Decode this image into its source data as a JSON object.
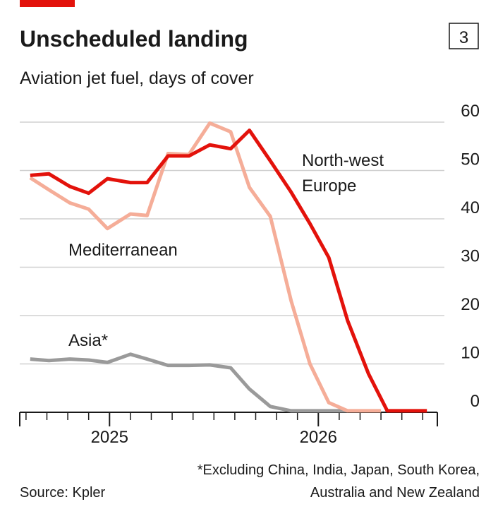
{
  "chart_data": {
    "type": "line",
    "title": "Unscheduled landing",
    "chart_number": "3",
    "subtitle": "Aviation jet fuel, days of cover",
    "annotations": {
      "nw_europe": [
        "North-west",
        "Europe"
      ],
      "mediterranean": "Mediterranean",
      "asia": "Asia*"
    },
    "footnote": [
      "*Excluding China, India, Japan, South Korea,",
      "Australia and New Zealand"
    ],
    "source": "Source: Kpler",
    "xlim": [
      2024.57,
      2026.57
    ],
    "xticks": [
      {
        "value": 2025,
        "label": "2025"
      },
      {
        "value": 2026,
        "label": "2026"
      }
    ],
    "xminorticks": [
      2024.6,
      2024.7,
      2024.8,
      2024.9,
      2025.1,
      2025.2,
      2025.3,
      2025.4,
      2025.5,
      2025.6,
      2025.7,
      2025.8,
      2025.9,
      2026.1,
      2026.2,
      2026.3,
      2026.4,
      2026.5
    ],
    "ylim": [
      0,
      60
    ],
    "yticks": [
      0,
      10,
      20,
      30,
      40,
      50,
      60
    ],
    "grid": true,
    "series": [
      {
        "name": "Asia*",
        "color": "#9a9a9a",
        "x": [
          2024.62,
          2024.71,
          2024.81,
          2024.9,
          2024.99,
          2025.1,
          2025.18,
          2025.28,
          2025.38,
          2025.48,
          2025.58,
          2025.67,
          2025.77,
          2025.87,
          2025.96,
          2026.05,
          2026.14
        ],
        "values": [
          11,
          10.7,
          11,
          10.8,
          10.3,
          12,
          11,
          9.7,
          9.7,
          9.8,
          9.2,
          4.8,
          1.2,
          0.3,
          0.3,
          0.3,
          0.3
        ]
      },
      {
        "name": "Mediterranean",
        "color": "#f5ad98",
        "x": [
          2024.62,
          2024.71,
          2024.81,
          2024.9,
          2024.99,
          2025.1,
          2025.18,
          2025.28,
          2025.38,
          2025.48,
          2025.58,
          2025.67,
          2025.77,
          2025.87,
          2025.96,
          2026.05,
          2026.14,
          2026.3
        ],
        "values": [
          48.5,
          46,
          43.3,
          42,
          38,
          41,
          40.7,
          53.5,
          53.3,
          59.8,
          58,
          46.5,
          40.5,
          23,
          10,
          2,
          0.3,
          0.3
        ]
      },
      {
        "name": "North-west Europe",
        "color": "#e3120b",
        "x": [
          2024.62,
          2024.71,
          2024.81,
          2024.9,
          2024.99,
          2025.1,
          2025.18,
          2025.28,
          2025.38,
          2025.48,
          2025.58,
          2025.67,
          2025.77,
          2025.87,
          2025.96,
          2026.05,
          2026.14,
          2026.24,
          2026.33,
          2026.52
        ],
        "values": [
          49,
          49.3,
          46.7,
          45.3,
          48.3,
          47.5,
          47.5,
          53,
          53,
          55.3,
          54.5,
          58.3,
          52,
          45.5,
          39,
          32,
          19,
          8,
          0.3,
          0.3
        ]
      }
    ]
  }
}
